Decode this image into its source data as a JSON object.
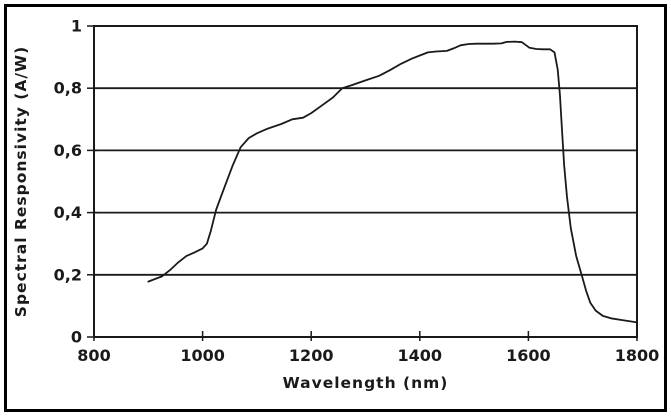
{
  "figure": {
    "background": "#ffffff",
    "frame_color": "#000000",
    "axis_color": "#1a1a1a",
    "text_color": "#1a1a1a"
  },
  "chart_data": {
    "type": "line",
    "title": "",
    "xlabel": "Wavelength (nm)",
    "ylabel": "Spectral Responsivity (A/W)",
    "xlim": [
      800,
      1800
    ],
    "ylim": [
      0,
      1
    ],
    "x_ticks": [
      800,
      1000,
      1200,
      1400,
      1600,
      1800
    ],
    "x_tick_labels": [
      "800",
      "1000",
      "1200",
      "1400",
      "1600",
      "1800"
    ],
    "y_ticks": [
      0,
      0.2,
      0.4,
      0.6,
      0.8,
      1
    ],
    "y_tick_labels": [
      "0",
      "0,2",
      "0,4",
      "0,6",
      "0,8",
      "1"
    ],
    "grid": "horizontal-only",
    "legend": "none",
    "series": [
      {
        "name": "spectral-responsivity",
        "color": "#1a1a1a",
        "points": [
          [
            900,
            0.178
          ],
          [
            910,
            0.185
          ],
          [
            925,
            0.195
          ],
          [
            940,
            0.215
          ],
          [
            955,
            0.24
          ],
          [
            970,
            0.26
          ],
          [
            985,
            0.272
          ],
          [
            1000,
            0.285
          ],
          [
            1008,
            0.3
          ],
          [
            1015,
            0.34
          ],
          [
            1025,
            0.41
          ],
          [
            1040,
            0.48
          ],
          [
            1055,
            0.55
          ],
          [
            1070,
            0.61
          ],
          [
            1085,
            0.64
          ],
          [
            1100,
            0.655
          ],
          [
            1120,
            0.67
          ],
          [
            1145,
            0.685
          ],
          [
            1165,
            0.7
          ],
          [
            1185,
            0.705
          ],
          [
            1200,
            0.72
          ],
          [
            1220,
            0.745
          ],
          [
            1240,
            0.77
          ],
          [
            1257,
            0.8
          ],
          [
            1275,
            0.81
          ],
          [
            1300,
            0.825
          ],
          [
            1325,
            0.84
          ],
          [
            1345,
            0.858
          ],
          [
            1365,
            0.878
          ],
          [
            1385,
            0.895
          ],
          [
            1400,
            0.905
          ],
          [
            1415,
            0.915
          ],
          [
            1430,
            0.918
          ],
          [
            1450,
            0.92
          ],
          [
            1462,
            0.928
          ],
          [
            1475,
            0.938
          ],
          [
            1490,
            0.942
          ],
          [
            1505,
            0.943
          ],
          [
            1520,
            0.943
          ],
          [
            1535,
            0.943
          ],
          [
            1550,
            0.944
          ],
          [
            1560,
            0.949
          ],
          [
            1575,
            0.95
          ],
          [
            1588,
            0.948
          ],
          [
            1602,
            0.93
          ],
          [
            1615,
            0.926
          ],
          [
            1628,
            0.925
          ],
          [
            1640,
            0.925
          ],
          [
            1648,
            0.915
          ],
          [
            1654,
            0.86
          ],
          [
            1658,
            0.78
          ],
          [
            1662,
            0.66
          ],
          [
            1666,
            0.55
          ],
          [
            1671,
            0.45
          ],
          [
            1678,
            0.35
          ],
          [
            1688,
            0.26
          ],
          [
            1698,
            0.2
          ],
          [
            1706,
            0.15
          ],
          [
            1714,
            0.11
          ],
          [
            1724,
            0.085
          ],
          [
            1737,
            0.068
          ],
          [
            1752,
            0.06
          ],
          [
            1770,
            0.055
          ],
          [
            1785,
            0.051
          ],
          [
            1800,
            0.047
          ]
        ]
      }
    ]
  }
}
